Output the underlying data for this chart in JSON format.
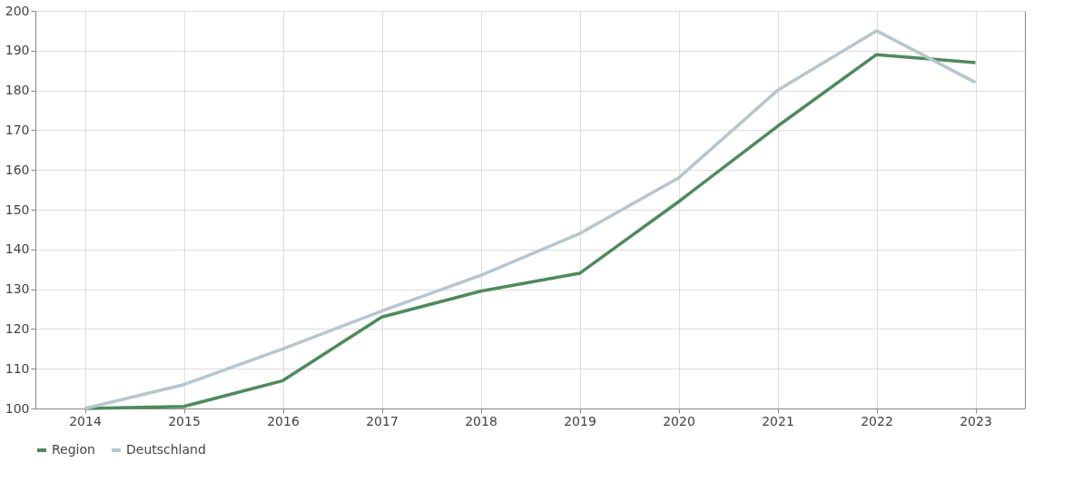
{
  "chart_data": {
    "type": "line",
    "categories": [
      "2014",
      "2015",
      "2016",
      "2017",
      "2018",
      "2019",
      "2020",
      "2021",
      "2022",
      "2023"
    ],
    "series": [
      {
        "name": "Region",
        "color": "#4f8a5c",
        "values": [
          100,
          100.5,
          107,
          123,
          129.5,
          134,
          152,
          171,
          189,
          187
        ]
      },
      {
        "name": "Deutschland",
        "color": "#b7c6cf",
        "values": [
          100,
          106,
          115,
          124.5,
          133.5,
          144,
          158,
          180,
          195,
          182
        ]
      }
    ],
    "ylim": [
      100,
      200
    ],
    "yticks": [
      100,
      110,
      120,
      130,
      140,
      150,
      160,
      170,
      180,
      190,
      200
    ],
    "grid": true,
    "legend": "bottom",
    "marker": "none",
    "line_style": "solid"
  }
}
